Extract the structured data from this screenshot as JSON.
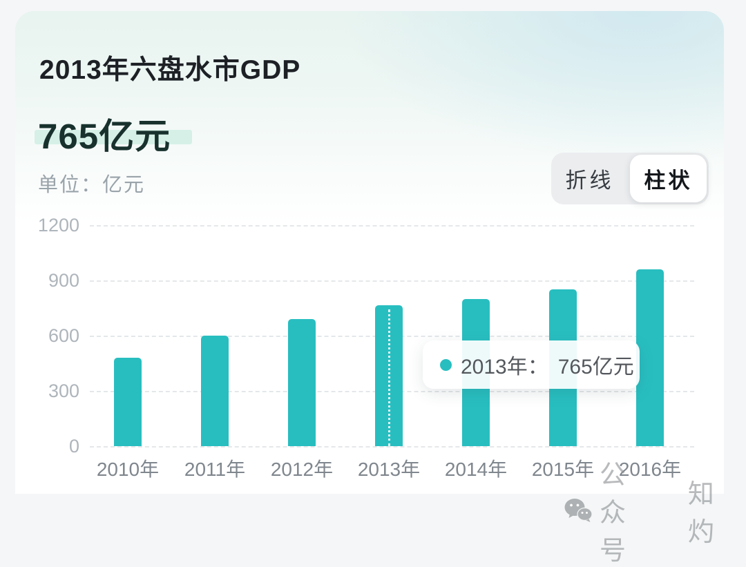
{
  "header": {
    "title": "2013年六盘水市GDP",
    "value": "765亿元",
    "unit_label": "单位：亿元"
  },
  "toggle": {
    "options": [
      {
        "label": "折线",
        "active": false
      },
      {
        "label": "柱状",
        "active": true
      }
    ]
  },
  "chart_data": {
    "type": "bar",
    "categories": [
      "2010年",
      "2011年",
      "2012年",
      "2013年",
      "2014年",
      "2015年",
      "2016年"
    ],
    "values": [
      480,
      600,
      690,
      765,
      800,
      850,
      960
    ],
    "unit": "亿元",
    "ylim": [
      0,
      1200
    ],
    "yticks": [
      0,
      300,
      600,
      900,
      1200
    ],
    "grid": "horizontal-dashed",
    "legend": "none",
    "bar_color": "#28bec0",
    "highlighted_index": 3,
    "tooltip": {
      "label_text": "2013年：",
      "value_text": "765亿元"
    }
  },
  "colors": {
    "accent_teal": "#28bec0",
    "value_highlight": "#d6f0e7",
    "grid": "#e4e7e9",
    "axis_text": "#aeb5bb"
  },
  "watermark": {
    "icon": "wechat-icon",
    "text_primary": "公众号",
    "text_secondary": "知灼"
  }
}
